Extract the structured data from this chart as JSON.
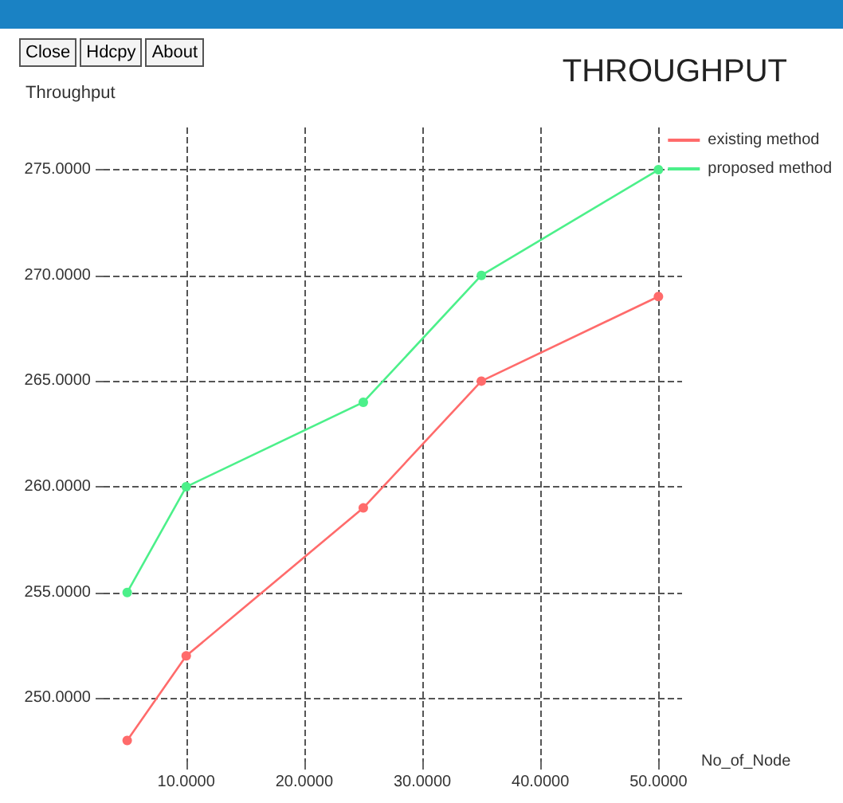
{
  "chart_data": {
    "type": "line",
    "title": "THROUGHPUT",
    "xlabel": "No_of_Node",
    "ylabel": "Throughput",
    "annotations": [
      "Close",
      "Hdcpy",
      "About"
    ],
    "xlim": [
      3,
      52
    ],
    "xticks": [
      {
        "value": 10,
        "label": "10.0000"
      },
      {
        "value": 20,
        "label": "20.0000"
      },
      {
        "value": 30,
        "label": "30.0000"
      },
      {
        "value": 40,
        "label": "40.0000"
      },
      {
        "value": 50,
        "label": "50.0000"
      }
    ],
    "ylim": [
      247,
      277
    ],
    "yticks": [
      {
        "value": 250,
        "label": "250.0000"
      },
      {
        "value": 255,
        "label": "255.0000"
      },
      {
        "value": 260,
        "label": "260.0000"
      },
      {
        "value": 265,
        "label": "265.0000"
      },
      {
        "value": 270,
        "label": "270.0000"
      },
      {
        "value": 275,
        "label": "275.0000"
      }
    ],
    "x": [
      5,
      10,
      25,
      35,
      50
    ],
    "series": [
      {
        "name": "existing method",
        "color": "#ff6b6b",
        "values": [
          248,
          252,
          259,
          265,
          269
        ]
      },
      {
        "name": "proposed method",
        "color": "#4cf08a",
        "values": [
          255,
          260,
          264,
          270,
          275
        ]
      }
    ],
    "grid": true,
    "legend": "top right",
    "marker": "circle",
    "line_style": "solid"
  }
}
